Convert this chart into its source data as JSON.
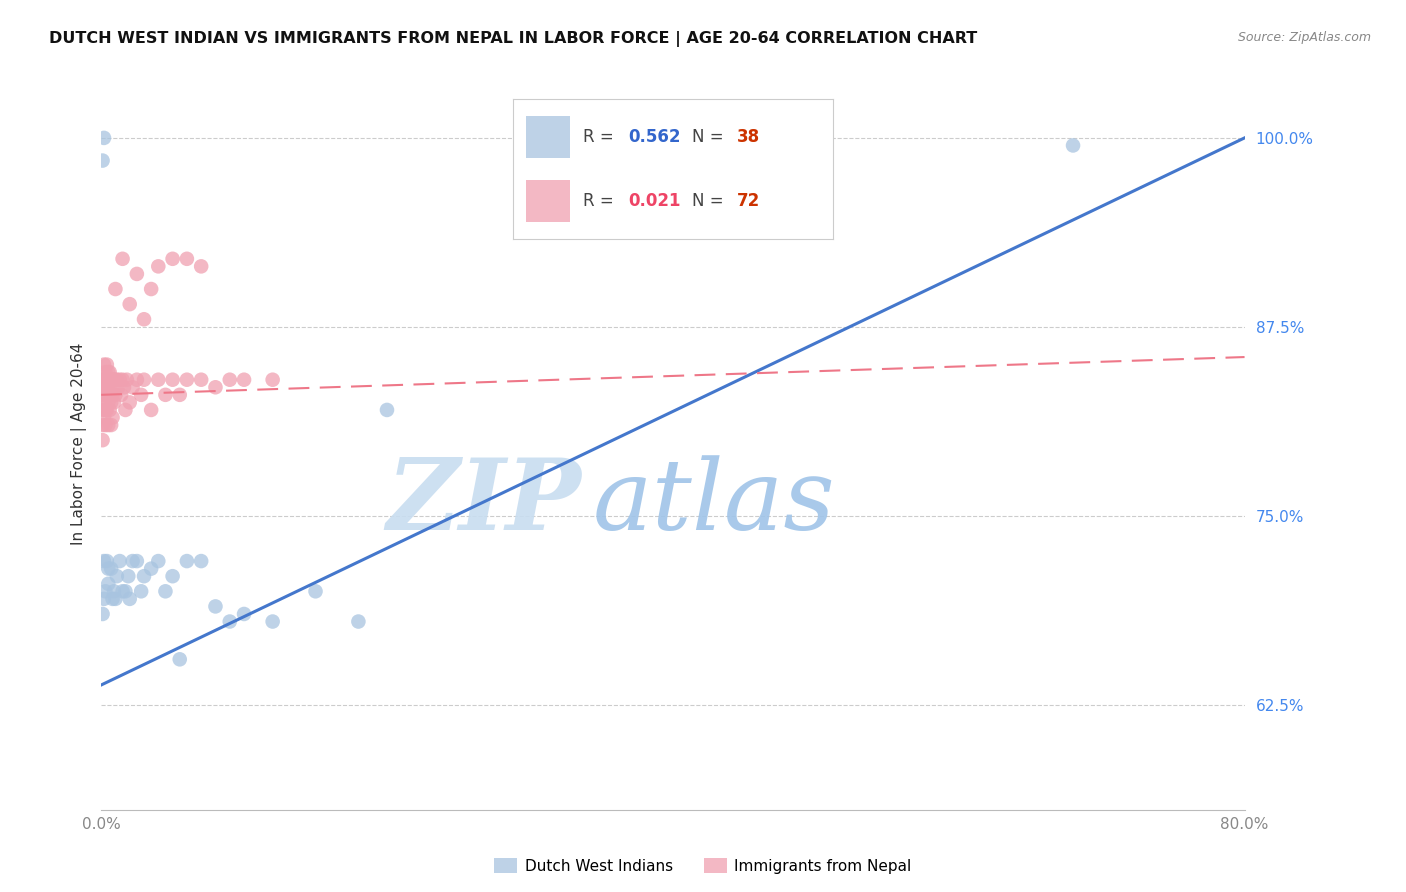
{
  "title": "DUTCH WEST INDIAN VS IMMIGRANTS FROM NEPAL IN LABOR FORCE | AGE 20-64 CORRELATION CHART",
  "source": "Source: ZipAtlas.com",
  "ylabel": "In Labor Force | Age 20-64",
  "xlim": [
    0.0,
    0.8
  ],
  "ylim": [
    0.555,
    1.04
  ],
  "yticks": [
    0.625,
    0.75,
    0.875,
    1.0
  ],
  "ytick_labels": [
    "62.5%",
    "75.0%",
    "87.5%",
    "100.0%"
  ],
  "blue_color": "#a8c4e0",
  "pink_color": "#f0a0b0",
  "blue_line_color": "#4477cc",
  "pink_line_color": "#ee7788",
  "blue_label": "Dutch West Indians",
  "pink_label": "Immigrants from Nepal",
  "blue_R": "0.562",
  "blue_N": "38",
  "pink_R": "0.021",
  "pink_N": "72",
  "blue_scatter_x": [
    0.001,
    0.002,
    0.002,
    0.003,
    0.004,
    0.005,
    0.005,
    0.007,
    0.008,
    0.009,
    0.01,
    0.011,
    0.013,
    0.015,
    0.017,
    0.019,
    0.02,
    0.022,
    0.025,
    0.028,
    0.03,
    0.035,
    0.04,
    0.045,
    0.05,
    0.055,
    0.06,
    0.07,
    0.08,
    0.09,
    0.1,
    0.12,
    0.15,
    0.18,
    0.001,
    0.002,
    0.2,
    0.68
  ],
  "blue_scatter_y": [
    0.685,
    0.72,
    0.695,
    0.7,
    0.72,
    0.715,
    0.705,
    0.715,
    0.695,
    0.7,
    0.695,
    0.71,
    0.72,
    0.7,
    0.7,
    0.71,
    0.695,
    0.72,
    0.72,
    0.7,
    0.71,
    0.715,
    0.72,
    0.7,
    0.71,
    0.655,
    0.72,
    0.72,
    0.69,
    0.68,
    0.685,
    0.68,
    0.7,
    0.68,
    0.985,
    1.0,
    0.82,
    0.995
  ],
  "pink_scatter_x": [
    0.001,
    0.001,
    0.001,
    0.001,
    0.001,
    0.001,
    0.002,
    0.002,
    0.002,
    0.002,
    0.002,
    0.003,
    0.003,
    0.003,
    0.003,
    0.003,
    0.004,
    0.004,
    0.004,
    0.004,
    0.004,
    0.005,
    0.005,
    0.005,
    0.005,
    0.006,
    0.006,
    0.006,
    0.007,
    0.007,
    0.007,
    0.008,
    0.008,
    0.008,
    0.009,
    0.009,
    0.01,
    0.01,
    0.011,
    0.012,
    0.013,
    0.014,
    0.015,
    0.016,
    0.017,
    0.018,
    0.02,
    0.022,
    0.025,
    0.028,
    0.03,
    0.035,
    0.04,
    0.045,
    0.05,
    0.055,
    0.06,
    0.07,
    0.08,
    0.09,
    0.1,
    0.12,
    0.01,
    0.015,
    0.02,
    0.025,
    0.03,
    0.035,
    0.04,
    0.05,
    0.06,
    0.07
  ],
  "pink_scatter_y": [
    0.84,
    0.82,
    0.81,
    0.83,
    0.8,
    0.835,
    0.85,
    0.84,
    0.825,
    0.815,
    0.835,
    0.845,
    0.835,
    0.82,
    0.81,
    0.84,
    0.85,
    0.84,
    0.83,
    0.82,
    0.84,
    0.845,
    0.835,
    0.825,
    0.81,
    0.845,
    0.835,
    0.82,
    0.84,
    0.825,
    0.81,
    0.84,
    0.83,
    0.815,
    0.84,
    0.825,
    0.84,
    0.83,
    0.84,
    0.835,
    0.84,
    0.83,
    0.84,
    0.835,
    0.82,
    0.84,
    0.825,
    0.835,
    0.84,
    0.83,
    0.84,
    0.82,
    0.84,
    0.83,
    0.84,
    0.83,
    0.84,
    0.84,
    0.835,
    0.84,
    0.84,
    0.84,
    0.9,
    0.92,
    0.89,
    0.91,
    0.88,
    0.9,
    0.915,
    0.92,
    0.92,
    0.915
  ],
  "blue_line_x": [
    0.0,
    0.8
  ],
  "blue_line_y": [
    0.638,
    1.0
  ],
  "pink_line_x": [
    0.0,
    0.8
  ],
  "pink_line_y": [
    0.83,
    0.855
  ],
  "watermark_zip": "ZIP",
  "watermark_atlas": "atlas",
  "background_color": "#ffffff",
  "grid_color": "#cccccc",
  "tick_color_y": "#4488ee",
  "tick_color_x": "#888888",
  "title_fontsize": 11.5,
  "axis_label_fontsize": 11,
  "tick_fontsize": 11,
  "legend_R_color_blue": "#3366cc",
  "legend_N_color_blue": "#cc3300",
  "legend_R_color_pink": "#ee4466",
  "legend_N_color_pink": "#cc3300"
}
